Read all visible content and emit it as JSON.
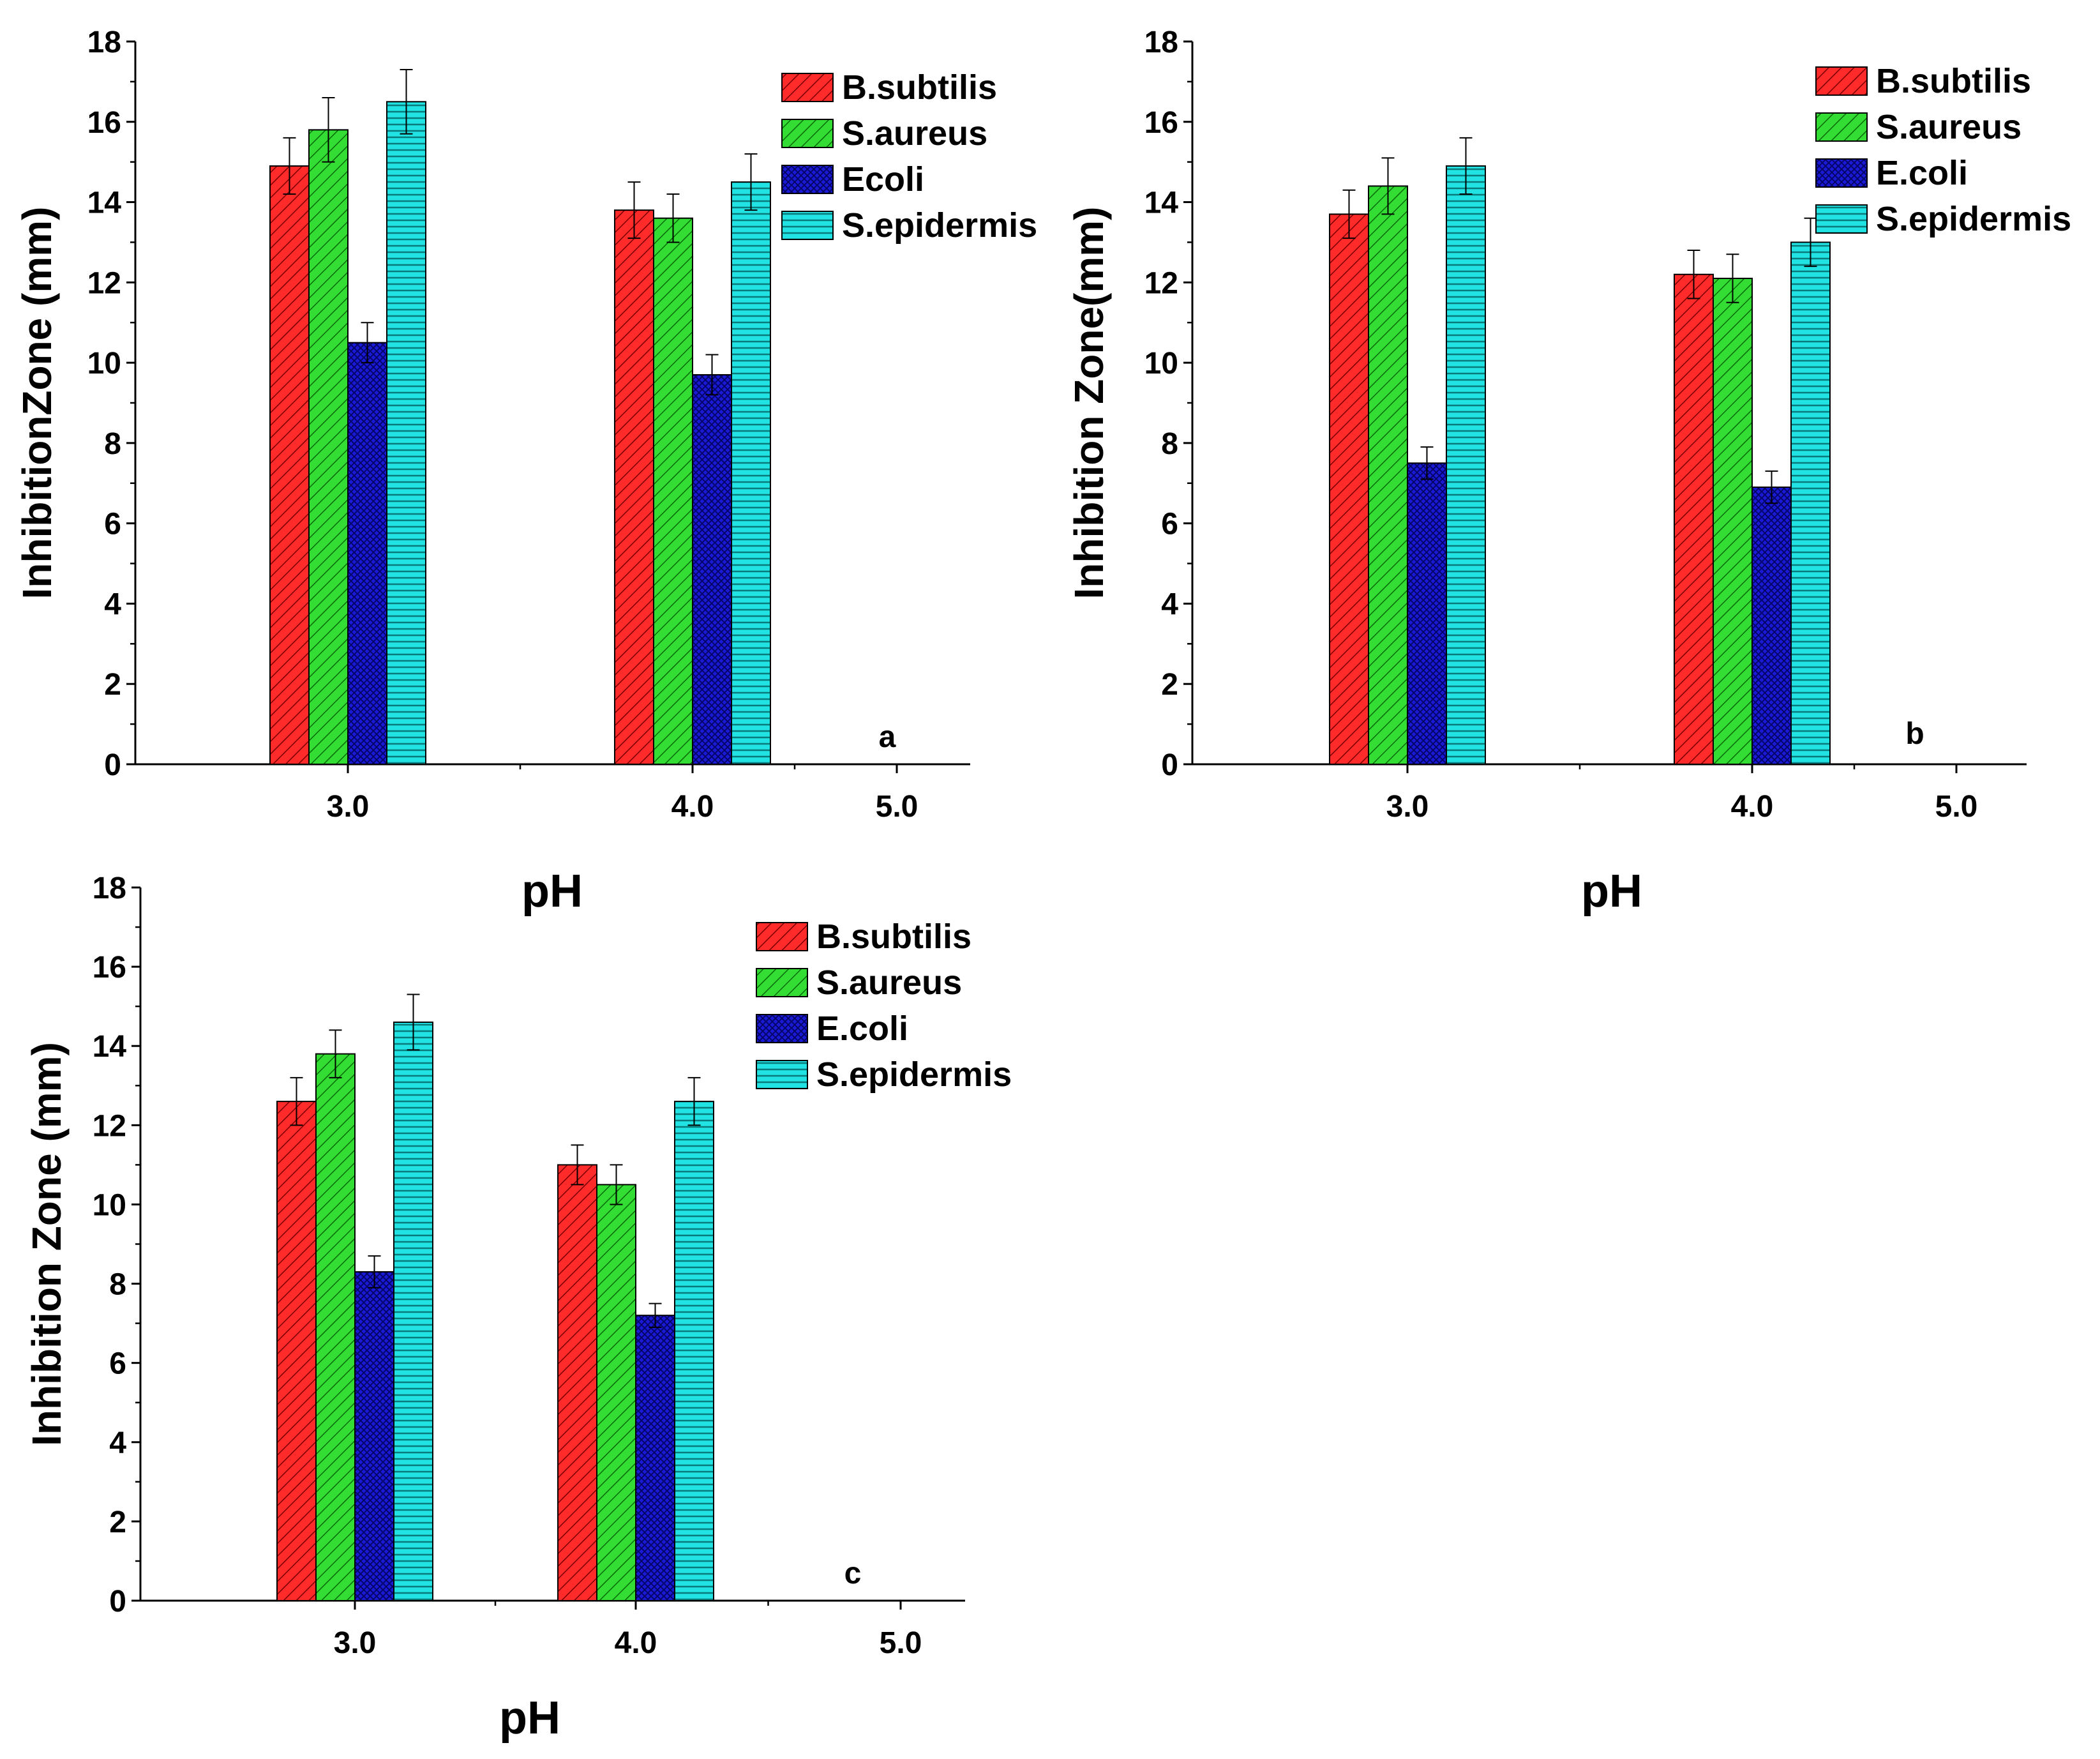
{
  "colors": {
    "B.subtilis": "#ff2a2a",
    "S.aureus": "#33dd33",
    "E.coli": "#1a1ad6",
    "S.epidermis": "#22e3e3"
  },
  "chart_data": [
    {
      "type": "bar",
      "panel": "a",
      "xlabel": "pH",
      "ylabel": "InhibitionZone  (mm)",
      "categories": [
        "3.0",
        "4.0",
        "5.0"
      ],
      "ylim": [
        0,
        18
      ],
      "yticks": [
        "0",
        "2",
        "4",
        "6",
        "8",
        "10",
        "12",
        "14",
        "16",
        "18"
      ],
      "legend": [
        "B.subtilis",
        "S.aureus",
        "Ecoli",
        "S.epidermis"
      ],
      "series": [
        {
          "name": "B.subtilis",
          "color_key": "B.subtilis",
          "values": [
            14.9,
            13.8,
            0
          ],
          "errors": [
            0.7,
            0.7,
            0
          ]
        },
        {
          "name": "S.aureus",
          "color_key": "S.aureus",
          "values": [
            15.8,
            13.6,
            0
          ],
          "errors": [
            0.8,
            0.6,
            0
          ]
        },
        {
          "name": "Ecoli",
          "color_key": "E.coli",
          "values": [
            10.5,
            9.7,
            0
          ],
          "errors": [
            0.5,
            0.5,
            0
          ]
        },
        {
          "name": "S.epidermis",
          "color_key": "S.epidermis",
          "values": [
            16.5,
            14.5,
            0
          ],
          "errors": [
            0.8,
            0.7,
            0
          ]
        }
      ]
    },
    {
      "type": "bar",
      "panel": "b",
      "xlabel": "pH",
      "ylabel": "Inhibition  Zone(mm)",
      "categories": [
        "3.0",
        "4.0",
        "5.0"
      ],
      "ylim": [
        0,
        18
      ],
      "yticks": [
        "0",
        "2",
        "4",
        "6",
        "8",
        "10",
        "12",
        "14",
        "16",
        "18"
      ],
      "legend": [
        "B.subtilis",
        "S.aureus",
        "E.coli",
        "S.epidermis"
      ],
      "series": [
        {
          "name": "B.subtilis",
          "color_key": "B.subtilis",
          "values": [
            13.7,
            12.2,
            0
          ],
          "errors": [
            0.6,
            0.6,
            0
          ]
        },
        {
          "name": "S.aureus",
          "color_key": "S.aureus",
          "values": [
            14.4,
            12.1,
            0
          ],
          "errors": [
            0.7,
            0.6,
            0
          ]
        },
        {
          "name": "E.coli",
          "color_key": "E.coli",
          "values": [
            7.5,
            6.9,
            0
          ],
          "errors": [
            0.4,
            0.4,
            0
          ]
        },
        {
          "name": "S.epidermis",
          "color_key": "S.epidermis",
          "values": [
            14.9,
            13.0,
            0
          ],
          "errors": [
            0.7,
            0.6,
            0
          ]
        }
      ]
    },
    {
      "type": "bar",
      "panel": "c",
      "xlabel": "pH",
      "ylabel": "Inhibition  Zone (mm)",
      "categories": [
        "3.0",
        "4.0",
        "5.0"
      ],
      "ylim": [
        0,
        18
      ],
      "yticks": [
        "0",
        "2",
        "4",
        "6",
        "8",
        "10",
        "12",
        "14",
        "16",
        "18"
      ],
      "legend": [
        "B.subtilis",
        "S.aureus",
        "E.coli",
        "S.epidermis"
      ],
      "series": [
        {
          "name": "B.subtilis",
          "color_key": "B.subtilis",
          "values": [
            12.6,
            11.0,
            0
          ],
          "errors": [
            0.6,
            0.5,
            0
          ]
        },
        {
          "name": "S.aureus",
          "color_key": "S.aureus",
          "values": [
            13.8,
            10.5,
            0
          ],
          "errors": [
            0.6,
            0.5,
            0
          ]
        },
        {
          "name": "E.coli",
          "color_key": "E.coli",
          "values": [
            8.3,
            7.2,
            0
          ],
          "errors": [
            0.4,
            0.3,
            0
          ]
        },
        {
          "name": "S.epidermis",
          "color_key": "S.epidermis",
          "values": [
            14.6,
            12.6,
            0
          ],
          "errors": [
            0.7,
            0.6,
            0
          ]
        }
      ]
    }
  ]
}
